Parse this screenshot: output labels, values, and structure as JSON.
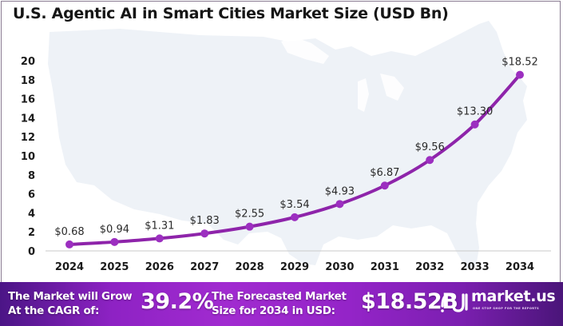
{
  "chart_data": {
    "type": "line",
    "title": "U.S. Agentic AI in Smart Cities Market Size (USD Bn)",
    "xlabel": "",
    "ylabel": "",
    "categories": [
      "2024",
      "2025",
      "2026",
      "2027",
      "2028",
      "2029",
      "2030",
      "2031",
      "2032",
      "2033",
      "2034"
    ],
    "series": [
      {
        "name": "Market Size (USD Bn)",
        "values": [
          0.68,
          0.94,
          1.31,
          1.83,
          2.55,
          3.54,
          4.93,
          6.87,
          9.56,
          13.3,
          18.52
        ]
      }
    ],
    "data_labels": [
      "$0.68",
      "$0.94",
      "$1.31",
      "$1.83",
      "$2.55",
      "$3.54",
      "$4.93",
      "$6.87",
      "$9.56",
      "$13.30",
      "$18.52"
    ],
    "yticks": [
      0,
      2,
      4,
      6,
      8,
      10,
      12,
      14,
      16,
      18,
      20
    ],
    "ylim": [
      0,
      20
    ],
    "grid": false,
    "legend": "none",
    "line_color": "#8e24aa",
    "background": "U.S. map silhouette"
  },
  "footer": {
    "cagr_text_line1": "The Market will Grow",
    "cagr_text_line2": "At the CAGR of:",
    "cagr_value": "39.2%",
    "forecast_text_line1": "The Forecasted Market",
    "forecast_text_line2": "Size for 2034 in USD:",
    "forecast_value": "$18.52B",
    "brand_name": "market.us",
    "brand_tagline": "ONE STOP SHOP FOR THE REPORTS"
  },
  "colors": {
    "line": "#8e24aa",
    "marker": "#9c2fc0",
    "map": "#eef2f7",
    "footer_accent": "#9c27b0"
  }
}
